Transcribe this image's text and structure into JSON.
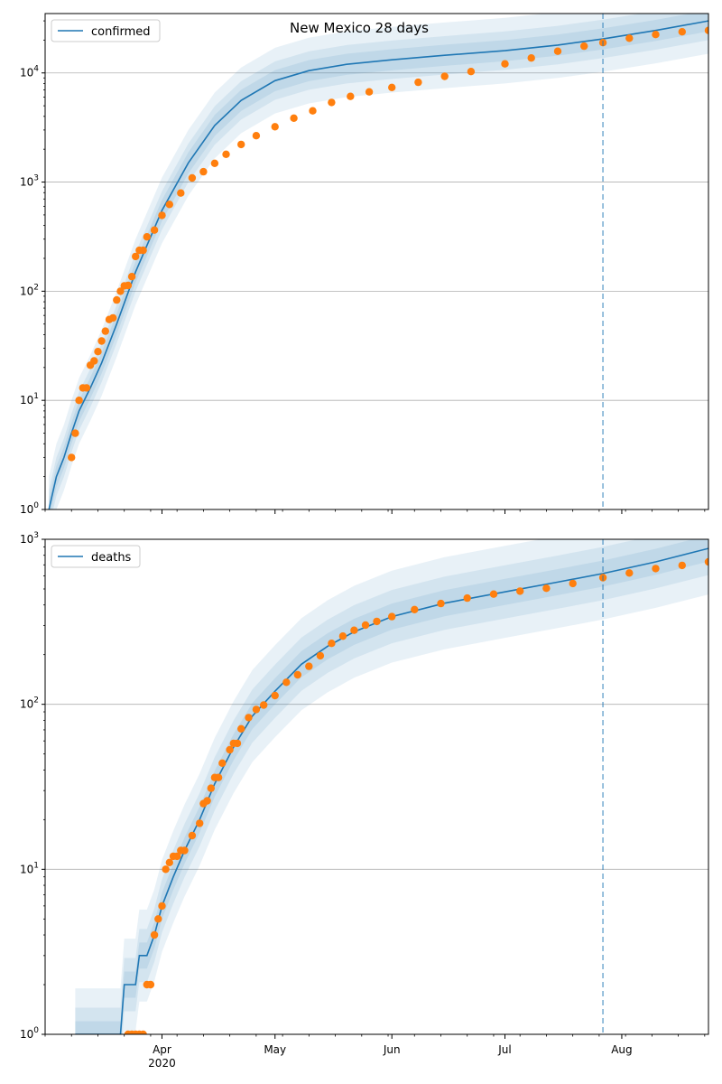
{
  "figure": {
    "title": "New Mexico 28 days"
  },
  "colors": {
    "model": "#1f77b4",
    "observed": "#ff7f0e",
    "band": "#1f77b4",
    "grid": "#b0b0b0",
    "forecast_line": "#1f77b4"
  },
  "chart_data": [
    {
      "type": "line",
      "panel": "top",
      "title": "New Mexico 28 days",
      "yscale": "log",
      "xlim": [
        "2020-03-01",
        "2020-08-24"
      ],
      "ylim": [
        1,
        35000
      ],
      "grid": "y-major",
      "legend": {
        "position": "top-left",
        "entries": [
          "confirmed"
        ]
      },
      "x_ticks": [
        "2020-04-01",
        "2020-05-01",
        "2020-06-01",
        "2020-07-01",
        "2020-08-01"
      ],
      "x_tick_labels": [],
      "y_ticks": [
        1,
        10,
        100,
        1000,
        10000
      ],
      "y_tick_labels": [
        "10^0",
        "10^1",
        "10^2",
        "10^3",
        "10^4"
      ],
      "forecast_start": "2020-07-27",
      "series": [
        {
          "name": "confirmed",
          "role": "model",
          "x": [
            "2020-03-02",
            "2020-03-04",
            "2020-03-06",
            "2020-03-08",
            "2020-03-10",
            "2020-03-13",
            "2020-03-16",
            "2020-03-20",
            "2020-03-25",
            "2020-04-01",
            "2020-04-08",
            "2020-04-15",
            "2020-04-22",
            "2020-05-01",
            "2020-05-10",
            "2020-05-20",
            "2020-06-01",
            "2020-06-15",
            "2020-07-01",
            "2020-07-15",
            "2020-07-27",
            "2020-08-10",
            "2020-08-24"
          ],
          "y": [
            1,
            2,
            3,
            5,
            8,
            13,
            22,
            50,
            150,
            550,
            1500,
            3300,
            5600,
            8500,
            10500,
            12000,
            13200,
            14500,
            16000,
            18000,
            20500,
            24500,
            30000
          ],
          "band_factors": [
            1.25,
            1.5,
            2.0
          ]
        },
        {
          "name": "observed",
          "role": "data",
          "x": [
            "2020-03-08",
            "2020-03-09",
            "2020-03-10",
            "2020-03-11",
            "2020-03-12",
            "2020-03-13",
            "2020-03-14",
            "2020-03-15",
            "2020-03-16",
            "2020-03-17",
            "2020-03-18",
            "2020-03-19",
            "2020-03-20",
            "2020-03-21",
            "2020-03-22",
            "2020-03-23",
            "2020-03-24",
            "2020-03-25",
            "2020-03-26",
            "2020-03-27",
            "2020-03-28",
            "2020-03-30",
            "2020-04-01",
            "2020-04-03",
            "2020-04-06",
            "2020-04-09",
            "2020-04-12",
            "2020-04-15",
            "2020-04-18",
            "2020-04-22",
            "2020-04-26",
            "2020-05-01",
            "2020-05-06",
            "2020-05-11",
            "2020-05-16",
            "2020-05-21",
            "2020-05-26",
            "2020-06-01",
            "2020-06-08",
            "2020-06-15",
            "2020-06-22",
            "2020-07-01",
            "2020-07-08",
            "2020-07-15",
            "2020-07-22",
            "2020-07-27",
            "2020-08-03",
            "2020-08-10",
            "2020-08-17",
            "2020-08-24"
          ],
          "y": [
            3,
            5,
            10,
            13,
            13,
            21,
            23,
            28,
            35,
            43,
            55,
            57,
            83,
            100,
            112,
            113,
            136,
            208,
            237,
            237,
            315,
            363,
            495,
            624,
            794,
            1091,
            1245,
            1484,
            1798,
            2210,
            2660,
            3213,
            3850,
            4490,
            5364,
            6096,
            6700,
            7364,
            8200,
            9300,
            10300,
            12100,
            13700,
            15800,
            17600,
            18950,
            20800,
            22500,
            23800,
            24500
          ]
        }
      ]
    },
    {
      "type": "line",
      "panel": "bottom",
      "yscale": "log",
      "xlim": [
        "2020-03-01",
        "2020-08-24"
      ],
      "ylim": [
        1,
        1000
      ],
      "grid": "y-major",
      "legend": {
        "position": "top-left",
        "entries": [
          "deaths"
        ]
      },
      "x_ticks": [
        "2020-04-01",
        "2020-05-01",
        "2020-06-01",
        "2020-07-01",
        "2020-08-01"
      ],
      "x_tick_labels": [
        "Apr\n2020",
        "May",
        "Jun",
        "Jul",
        "Aug"
      ],
      "y_ticks": [
        1,
        10,
        100,
        1000
      ],
      "y_tick_labels": [
        "10^0",
        "10^1",
        "10^2",
        "10^3"
      ],
      "forecast_start": "2020-07-27",
      "series": [
        {
          "name": "deaths",
          "role": "model",
          "x": [
            "2020-03-09",
            "2020-03-21",
            "2020-03-22",
            "2020-03-25",
            "2020-03-26",
            "2020-03-28",
            "2020-03-30",
            "2020-04-01",
            "2020-04-04",
            "2020-04-07",
            "2020-04-11",
            "2020-04-15",
            "2020-04-20",
            "2020-04-25",
            "2020-05-01",
            "2020-05-08",
            "2020-05-15",
            "2020-05-22",
            "2020-06-01",
            "2020-06-15",
            "2020-07-01",
            "2020-07-15",
            "2020-07-27",
            "2020-08-10",
            "2020-08-24"
          ],
          "y": [
            1,
            1,
            2,
            2,
            3,
            3,
            4,
            6,
            9,
            13,
            20,
            33,
            55,
            85,
            120,
            175,
            225,
            275,
            340,
            410,
            480,
            550,
            620,
            730,
            880
          ],
          "band_factors": [
            1.2,
            1.45,
            1.9
          ]
        },
        {
          "name": "observed",
          "role": "data",
          "x": [
            "2020-03-23",
            "2020-03-24",
            "2020-03-25",
            "2020-03-26",
            "2020-03-27",
            "2020-03-28",
            "2020-03-29",
            "2020-03-30",
            "2020-03-31",
            "2020-04-01",
            "2020-04-02",
            "2020-04-03",
            "2020-04-04",
            "2020-04-05",
            "2020-04-06",
            "2020-04-07",
            "2020-04-09",
            "2020-04-11",
            "2020-04-12",
            "2020-04-13",
            "2020-04-14",
            "2020-04-15",
            "2020-04-16",
            "2020-04-17",
            "2020-04-19",
            "2020-04-20",
            "2020-04-21",
            "2020-04-22",
            "2020-04-24",
            "2020-04-26",
            "2020-04-28",
            "2020-05-01",
            "2020-05-04",
            "2020-05-07",
            "2020-05-10",
            "2020-05-13",
            "2020-05-16",
            "2020-05-19",
            "2020-05-22",
            "2020-05-25",
            "2020-05-28",
            "2020-06-01",
            "2020-06-07",
            "2020-06-14",
            "2020-06-21",
            "2020-06-28",
            "2020-07-05",
            "2020-07-12",
            "2020-07-19",
            "2020-07-27",
            "2020-08-03",
            "2020-08-10",
            "2020-08-17",
            "2020-08-24"
          ],
          "y": [
            1,
            1,
            1,
            1,
            1,
            2,
            2,
            4,
            5,
            6,
            10,
            11,
            12,
            12,
            13,
            13,
            16,
            19,
            25,
            26,
            31,
            36,
            36,
            44,
            53,
            58,
            58,
            71,
            83,
            93,
            99,
            113,
            136,
            151,
            170,
            197,
            234,
            259,
            281,
            302,
            318,
            340,
            375,
            408,
            440,
            465,
            485,
            505,
            540,
            585,
            625,
            665,
            695,
            730
          ]
        }
      ]
    }
  ]
}
